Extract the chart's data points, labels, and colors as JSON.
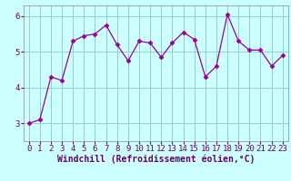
{
  "x": [
    0,
    1,
    2,
    3,
    4,
    5,
    6,
    7,
    8,
    9,
    10,
    11,
    12,
    13,
    14,
    15,
    16,
    17,
    18,
    19,
    20,
    21,
    22,
    23
  ],
  "y": [
    3.0,
    3.1,
    4.3,
    4.2,
    5.3,
    5.45,
    5.5,
    5.75,
    5.2,
    4.75,
    5.3,
    5.25,
    4.85,
    5.25,
    5.55,
    5.35,
    4.3,
    4.6,
    6.05,
    5.3,
    5.05,
    5.05,
    4.6,
    4.9
  ],
  "line_color": "#990099",
  "marker": "D",
  "marker_size": 2.5,
  "bg_color": "#ccffff",
  "grid_color": "#99cccc",
  "xlabel": "Windchill (Refroidissement éolien,°C)",
  "xlabel_color": "#660066",
  "ylim": [
    2.5,
    6.3
  ],
  "yticks": [
    3,
    4,
    5,
    6
  ],
  "xticks": [
    0,
    1,
    2,
    3,
    4,
    5,
    6,
    7,
    8,
    9,
    10,
    11,
    12,
    13,
    14,
    15,
    16,
    17,
    18,
    19,
    20,
    21,
    22,
    23
  ],
  "tick_fontsize": 6.5,
  "tick_color": "#660066",
  "xlabel_fontsize": 7,
  "spine_color": "#888888"
}
